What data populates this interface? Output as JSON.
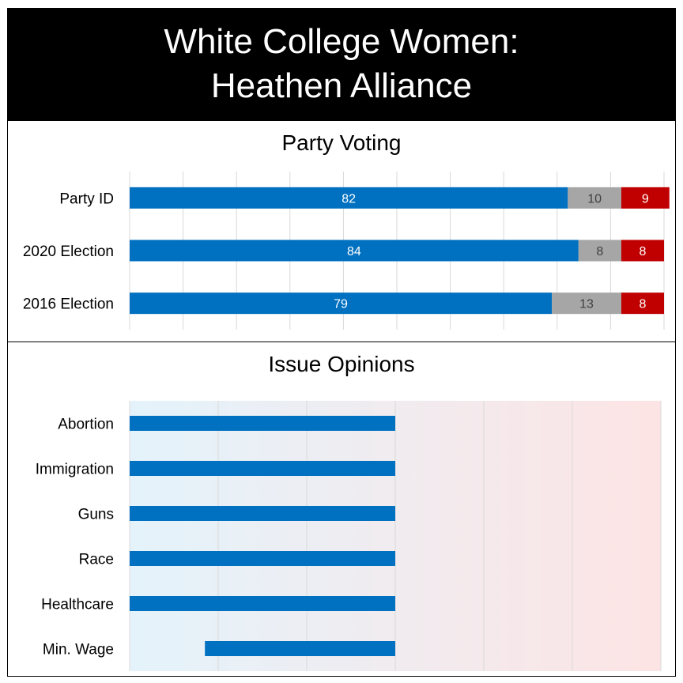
{
  "header": {
    "title_line1": "White College Women:",
    "title_line2": "Heathen Alliance"
  },
  "chart_data": [
    {
      "type": "bar",
      "orientation": "horizontal",
      "stacked": true,
      "title": "Party Voting",
      "categories": [
        "Party ID",
        "2020 Election",
        "2016 Election"
      ],
      "series": [
        {
          "values": [
            82,
            84,
            79
          ],
          "color": "#0070C0",
          "label_color": "#ffffff"
        },
        {
          "values": [
            10,
            8,
            13
          ],
          "color": "#A6A6A6",
          "label_color": "#404040"
        },
        {
          "values": [
            9,
            8,
            8
          ],
          "color": "#C00000",
          "label_color": "#ffffff"
        }
      ],
      "xlim": [
        0,
        100
      ],
      "grid": true,
      "legend": "none"
    },
    {
      "type": "bar",
      "orientation": "horizontal",
      "title": "Issue Opinions",
      "categories": [
        "Abortion",
        "Immigration",
        "Guns",
        "Race",
        "Healthcare",
        "Min. Wage"
      ],
      "ranges": [
        [
          -3,
          0
        ],
        [
          -3,
          0
        ],
        [
          -3,
          0
        ],
        [
          -3,
          0
        ],
        [
          -3,
          0
        ],
        [
          -2.15,
          0
        ]
      ],
      "xlim": [
        -3,
        3
      ],
      "bar_color": "#0070C0",
      "background_gradient": [
        "#E4F3FB",
        "#FDE4E4"
      ],
      "grid": true,
      "legend": "none"
    }
  ]
}
